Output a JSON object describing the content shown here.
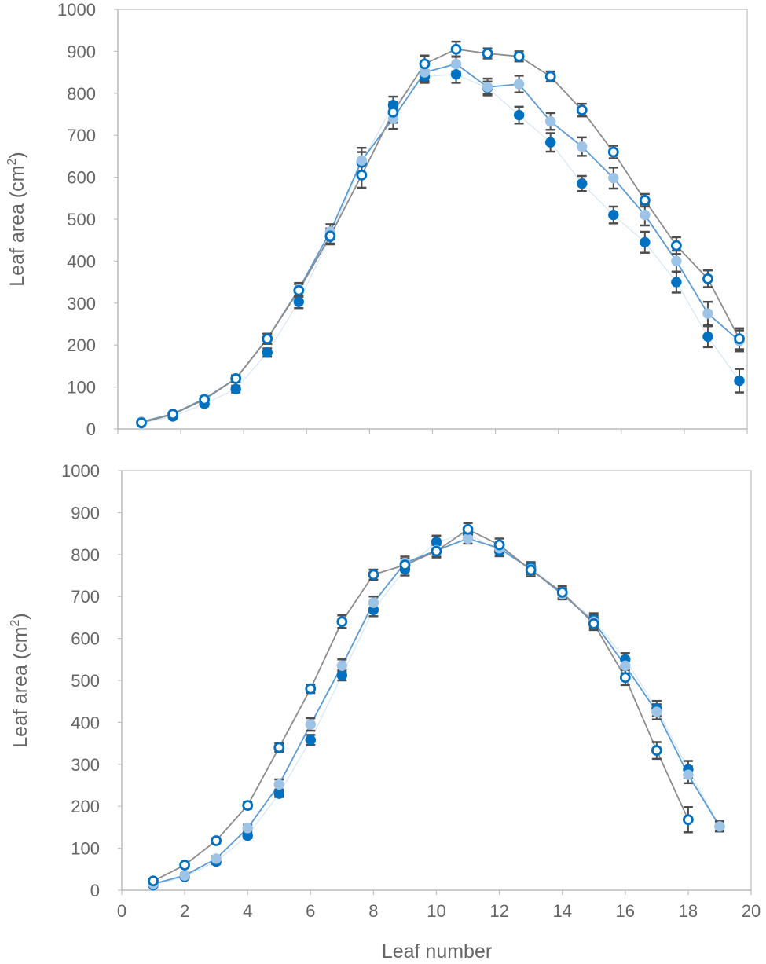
{
  "chart_data": [
    {
      "type": "line",
      "panel": "top",
      "xlabel": "",
      "ylabel": "Leaf area (cm²)",
      "ylabel_main": "Leaf area (cm",
      "ylabel_sup": "2",
      "ylabel_close": ")",
      "ylim": [
        0,
        1000
      ],
      "yticks": [
        "0",
        "100",
        "200",
        "300",
        "400",
        "500",
        "600",
        "700",
        "800",
        "900",
        "1000"
      ],
      "x": [
        1,
        2,
        3,
        4,
        5,
        6,
        7,
        8,
        9,
        10,
        11,
        12,
        13,
        14,
        15,
        16,
        17,
        18
      ],
      "grid": false,
      "series": [
        {
          "marker": "open-circle",
          "color": "#0070c0",
          "line_color": "#8c8c8c",
          "values": [
            15,
            35,
            70,
            120,
            215,
            330,
            460,
            605,
            755,
            870,
            905,
            895,
            888,
            840,
            760,
            660,
            545,
            437,
            358,
            215
          ],
          "x": [
            0.75,
            1.75,
            2.75,
            3.75,
            4.75,
            5.75,
            6.75,
            7.75,
            8.75,
            9.75,
            10.75,
            11.75,
            12.75,
            13.75,
            14.75,
            15.75,
            16.75,
            17.75,
            18.75,
            19.75
          ],
          "errors": [
            3,
            4,
            6,
            8,
            12,
            15,
            18,
            30,
            25,
            20,
            18,
            12,
            12,
            12,
            15,
            15,
            15,
            20,
            20,
            25
          ]
        },
        {
          "marker": "filled-circle-light",
          "color": "#9dc3e6",
          "line_color": "#5b9bd5",
          "values": [
            17,
            36,
            72,
            120,
            215,
            333,
            470,
            640,
            740,
            850,
            870,
            815,
            822,
            733,
            673,
            598,
            510,
            400,
            275,
            210
          ],
          "x": [
            0.75,
            1.75,
            2.75,
            3.75,
            4.75,
            5.75,
            6.75,
            7.75,
            8.75,
            9.75,
            10.75,
            11.75,
            12.75,
            13.75,
            14.75,
            15.75,
            16.75,
            17.75,
            18.75,
            19.75
          ],
          "errors": [
            3,
            4,
            6,
            8,
            12,
            15,
            18,
            30,
            25,
            20,
            18,
            20,
            20,
            20,
            22,
            25,
            25,
            25,
            28,
            25
          ]
        },
        {
          "marker": "filled-circle-dark",
          "color": "#0070c0",
          "line_color": "#d6e6f4",
          "values": [
            14,
            30,
            60,
            95,
            182,
            303,
            458,
            635,
            772,
            840,
            845,
            813,
            748,
            683,
            585,
            510,
            445,
            350,
            220,
            115
          ],
          "x": [
            0.75,
            1.75,
            2.75,
            3.75,
            4.75,
            5.75,
            6.75,
            7.75,
            8.75,
            9.75,
            10.75,
            11.75,
            12.75,
            13.75,
            14.75,
            15.75,
            16.75,
            17.75,
            18.75,
            19.75
          ],
          "errors": [
            3,
            4,
            6,
            8,
            10,
            15,
            18,
            25,
            20,
            15,
            20,
            15,
            20,
            22,
            18,
            20,
            25,
            25,
            25,
            28
          ]
        }
      ]
    },
    {
      "type": "line",
      "panel": "bottom",
      "xlabel": "Leaf number",
      "ylabel": "Leaf area (cm²)",
      "ylabel_main": "Leaf area (cm",
      "ylabel_sup": "2",
      "ylabel_close": ")",
      "ylim": [
        0,
        1000
      ],
      "xlim": [
        0,
        20
      ],
      "yticks": [
        "0",
        "100",
        "200",
        "300",
        "400",
        "500",
        "600",
        "700",
        "800",
        "900",
        "1000"
      ],
      "xticks": [
        "0",
        "2",
        "4",
        "6",
        "8",
        "10",
        "12",
        "14",
        "16",
        "18",
        "20"
      ],
      "grid": false,
      "series": [
        {
          "marker": "open-circle",
          "color": "#0070c0",
          "line_color": "#8c8c8c",
          "x": [
            1,
            2,
            3,
            4,
            5,
            6,
            7,
            8,
            9,
            10,
            11,
            12,
            13,
            14,
            15,
            16,
            17,
            18
          ],
          "values": [
            22,
            60,
            118,
            202,
            340,
            480,
            640,
            752,
            775,
            808,
            860,
            823,
            763,
            710,
            635,
            507,
            333,
            168
          ],
          "errors": [
            4,
            5,
            6,
            8,
            10,
            10,
            15,
            12,
            15,
            15,
            15,
            15,
            15,
            15,
            15,
            18,
            20,
            30
          ]
        },
        {
          "marker": "filled-circle-light",
          "color": "#9dc3e6",
          "line_color": "#5b9bd5",
          "x": [
            1,
            2,
            3,
            4,
            5,
            6,
            7,
            8,
            9,
            10,
            11,
            12,
            13,
            14,
            15,
            16,
            17,
            18,
            19
          ],
          "values": [
            15,
            35,
            75,
            148,
            252,
            395,
            535,
            685,
            780,
            810,
            838,
            815,
            765,
            705,
            640,
            535,
            425,
            275,
            152
          ],
          "errors": [
            4,
            5,
            6,
            8,
            12,
            15,
            15,
            15,
            15,
            15,
            12,
            12,
            12,
            12,
            15,
            18,
            18,
            20,
            12
          ]
        },
        {
          "marker": "filled-circle-dark",
          "color": "#0070c0",
          "line_color": "#d6e6f4",
          "x": [
            1,
            2,
            3,
            4,
            5,
            6,
            7,
            8,
            9,
            10,
            11,
            12,
            13,
            14,
            15,
            16,
            17,
            18,
            19
          ],
          "values": [
            12,
            32,
            68,
            130,
            230,
            358,
            512,
            668,
            765,
            830,
            850,
            808,
            770,
            708,
            645,
            550,
            433,
            288,
            152
          ],
          "errors": [
            3,
            4,
            6,
            6,
            8,
            12,
            12,
            15,
            15,
            15,
            12,
            12,
            12,
            12,
            15,
            15,
            18,
            20,
            12
          ]
        }
      ]
    }
  ]
}
